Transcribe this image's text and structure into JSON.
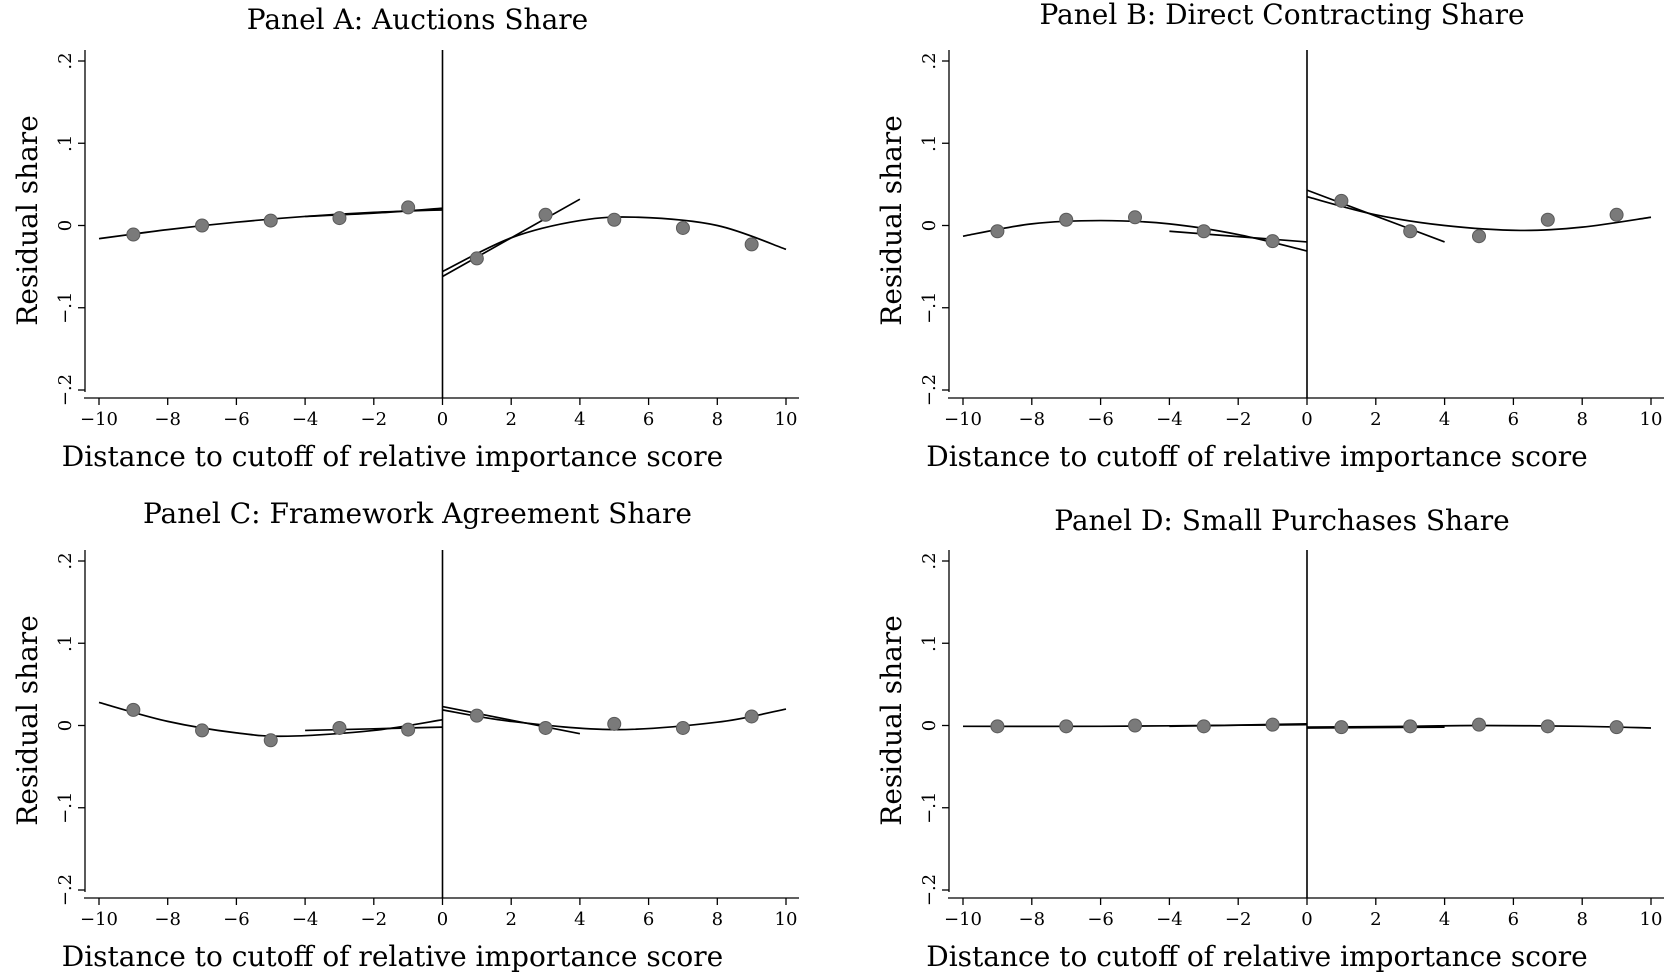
{
  "chart_data": [
    {
      "type": "scatter",
      "title": "Panel A: Auctions Share",
      "xlabel": "Distance to cutoff of relative importance score",
      "ylabel": "Residual share",
      "xlim": [
        -10,
        10
      ],
      "ylim": [
        -0.2,
        0.2
      ],
      "xticks": [
        -10,
        -8,
        -6,
        -4,
        -2,
        0,
        2,
        4,
        6,
        8,
        10
      ],
      "xtick_labels": [
        "−10",
        "−8",
        "−6",
        "−4",
        "−2",
        "0",
        "2",
        "4",
        "6",
        "8",
        "10"
      ],
      "yticks": [
        -0.2,
        -0.1,
        0,
        0.1,
        0.2
      ],
      "ytick_labels": [
        "−.2",
        "−.1",
        "0",
        ".1",
        ".2"
      ],
      "cutoff_x": 0,
      "grid": false,
      "points": {
        "x": [
          -9,
          -7,
          -5,
          -3,
          -1,
          1,
          3,
          5,
          7,
          9
        ],
        "y": [
          -0.011,
          0.0,
          0.006,
          0.009,
          0.022,
          -0.04,
          0.013,
          0.007,
          -0.003,
          -0.023
        ]
      },
      "fits": [
        {
          "x": [
            -10,
            -8,
            -6,
            -4,
            -2,
            0
          ],
          "y": [
            -0.016,
            -0.005,
            0.004,
            0.011,
            0.016,
            0.019
          ]
        },
        {
          "x": [
            -4,
            -2,
            0
          ],
          "y": [
            0.011,
            0.015,
            0.021
          ]
        },
        {
          "x": [
            0,
            2,
            4,
            5.7,
            8,
            10
          ],
          "y": [
            -0.056,
            -0.015,
            0.006,
            0.01,
            0.0,
            -0.029
          ]
        },
        {
          "x": [
            0,
            4
          ],
          "y": [
            -0.062,
            0.032
          ]
        }
      ]
    },
    {
      "type": "scatter",
      "title": "Panel B: Direct Contracting Share",
      "xlabel": "Distance to cutoff of relative importance score",
      "ylabel": "Residual share",
      "xlim": [
        -10,
        10
      ],
      "ylim": [
        -0.2,
        0.2
      ],
      "xticks": [
        -10,
        -8,
        -6,
        -4,
        -2,
        0,
        2,
        4,
        6,
        8,
        10
      ],
      "xtick_labels": [
        "−10",
        "−8",
        "−6",
        "−4",
        "−2",
        "0",
        "2",
        "4",
        "6",
        "8",
        "10"
      ],
      "yticks": [
        -0.2,
        -0.1,
        0,
        0.1,
        0.2
      ],
      "ytick_labels": [
        "−.2",
        "−.1",
        "0",
        ".1",
        ".2"
      ],
      "cutoff_x": 0,
      "grid": false,
      "points": {
        "x": [
          -9,
          -7,
          -5,
          -3,
          -1,
          1,
          3,
          5,
          7,
          9
        ],
        "y": [
          -0.007,
          0.007,
          0.01,
          -0.007,
          -0.019,
          0.03,
          -0.007,
          -0.013,
          0.007,
          0.013
        ]
      },
      "fits": [
        {
          "x": [
            -10,
            -8,
            -6,
            -4,
            -2,
            0
          ],
          "y": [
            -0.013,
            0.002,
            0.006,
            0.002,
            -0.011,
            -0.031
          ]
        },
        {
          "x": [
            -4,
            0
          ],
          "y": [
            -0.007,
            -0.02
          ]
        },
        {
          "x": [
            0,
            2,
            4,
            6.2,
            8,
            10
          ],
          "y": [
            0.035,
            0.013,
            0.0,
            -0.006,
            -0.002,
            0.01
          ]
        },
        {
          "x": [
            0,
            4
          ],
          "y": [
            0.043,
            -0.02
          ]
        }
      ]
    },
    {
      "type": "scatter",
      "title": "Panel C: Framework Agreement Share",
      "xlabel": "Distance to cutoff of relative importance score",
      "ylabel": "Residual share",
      "xlim": [
        -10,
        10
      ],
      "ylim": [
        -0.2,
        0.2
      ],
      "xticks": [
        -10,
        -8,
        -6,
        -4,
        -2,
        0,
        2,
        4,
        6,
        8,
        10
      ],
      "xtick_labels": [
        "−10",
        "−8",
        "−6",
        "−4",
        "−2",
        "0",
        "2",
        "4",
        "6",
        "8",
        "10"
      ],
      "yticks": [
        -0.2,
        -0.1,
        0,
        0.1,
        0.2
      ],
      "ytick_labels": [
        "−.2",
        "−.1",
        "0",
        ".1",
        ".2"
      ],
      "cutoff_x": 0,
      "grid": false,
      "points": {
        "x": [
          -9,
          -7,
          -5,
          -3,
          -1,
          1,
          3,
          5,
          7,
          9
        ],
        "y": [
          0.019,
          -0.006,
          -0.018,
          -0.003,
          -0.005,
          0.012,
          -0.003,
          0.002,
          -0.003,
          0.011
        ]
      },
      "fits": [
        {
          "x": [
            -10,
            -8,
            -6,
            -4.5,
            -2,
            0
          ],
          "y": [
            0.028,
            0.005,
            -0.009,
            -0.013,
            -0.006,
            0.007
          ]
        },
        {
          "x": [
            -4,
            0
          ],
          "y": [
            -0.006,
            -0.002
          ]
        },
        {
          "x": [
            0,
            2,
            5,
            8,
            10
          ],
          "y": [
            0.019,
            0.005,
            -0.005,
            0.004,
            0.02
          ]
        },
        {
          "x": [
            0,
            4
          ],
          "y": [
            0.023,
            -0.01
          ]
        }
      ]
    },
    {
      "type": "scatter",
      "title": "Panel D: Small Purchases Share",
      "xlabel": "Distance to cutoff of relative importance score",
      "ylabel": "Residual share",
      "xlim": [
        -10,
        10
      ],
      "ylim": [
        -0.2,
        0.2
      ],
      "xticks": [
        -10,
        -8,
        -6,
        -4,
        -2,
        0,
        2,
        4,
        6,
        8,
        10
      ],
      "xtick_labels": [
        "−10",
        "−8",
        "−6",
        "−4",
        "−2",
        "0",
        "2",
        "4",
        "6",
        "8",
        "10"
      ],
      "yticks": [
        -0.2,
        -0.1,
        0,
        0.1,
        0.2
      ],
      "ytick_labels": [
        "−.2",
        "−.1",
        "0",
        ".1",
        ".2"
      ],
      "cutoff_x": 0,
      "grid": false,
      "points": {
        "x": [
          -9,
          -7,
          -5,
          -3,
          -1,
          1,
          3,
          5,
          7,
          9
        ],
        "y": [
          -0.001,
          -0.001,
          0.0,
          -0.001,
          0.001,
          -0.002,
          -0.001,
          0.001,
          -0.001,
          -0.002
        ]
      },
      "fits": [
        {
          "x": [
            -10,
            -6,
            -3,
            0
          ],
          "y": [
            -0.001,
            -0.001,
            0.0,
            0.001
          ]
        },
        {
          "x": [
            -4,
            0
          ],
          "y": [
            -0.001,
            0.002
          ]
        },
        {
          "x": [
            0,
            3,
            5,
            8,
            10
          ],
          "y": [
            -0.002,
            -0.001,
            0.0,
            -0.001,
            -0.003
          ]
        },
        {
          "x": [
            0,
            4
          ],
          "y": [
            -0.003,
            -0.002
          ]
        }
      ]
    }
  ]
}
